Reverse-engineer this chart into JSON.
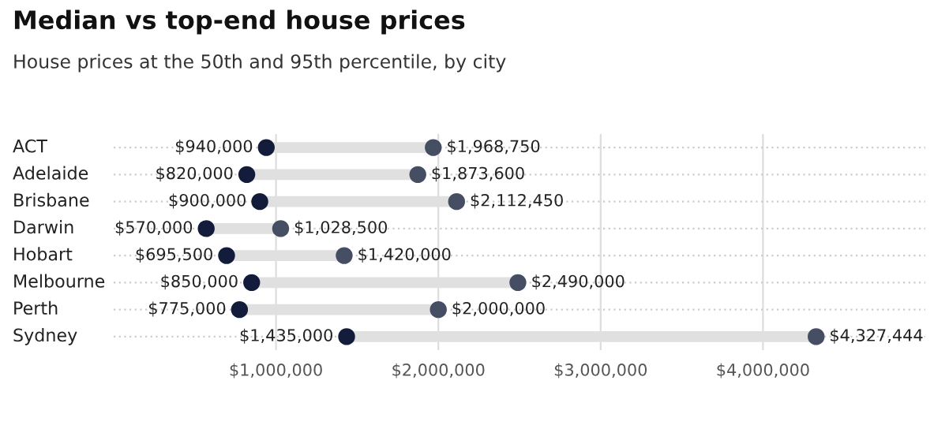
{
  "chart_data": {
    "type": "scatter",
    "orientation": "horizontal",
    "title": "Median vs top-end house prices",
    "subtitle": "House prices at the 50th and 95th percentile, by city",
    "categories": [
      "ACT",
      "Adelaide",
      "Brisbane",
      "Darwin",
      "Hobart",
      "Melbourne",
      "Perth",
      "Sydney"
    ],
    "series": [
      {
        "color": "#131c3a",
        "values": [
          940000,
          820000,
          900000,
          570000,
          695500,
          850000,
          775000,
          1435000
        ],
        "value_labels": [
          "$940,000",
          "$820,000",
          "$900,000",
          "$570,000",
          "$695,500",
          "$850,000",
          "$775,000",
          "$1,435,000"
        ]
      },
      {
        "color": "#454e63",
        "values": [
          1968750,
          1873600,
          2112450,
          1028500,
          1420000,
          2490000,
          2000000,
          4327444
        ],
        "value_labels": [
          "$1,968,750",
          "$1,873,600",
          "$2,112,450",
          "$1,028,500",
          "$1,420,000",
          "$2,490,000",
          "$2,000,000",
          "$4,327,444"
        ]
      }
    ],
    "xlim": [
      0,
      5000000
    ],
    "xticks": [
      {
        "value": 1000000,
        "label": "$1,000,000"
      },
      {
        "value": 2000000,
        "label": "$2,000,000"
      },
      {
        "value": 3000000,
        "label": "$3,000,000"
      },
      {
        "value": 4000000,
        "label": "$4,000,000"
      }
    ],
    "grid": true,
    "marker": "circle"
  }
}
